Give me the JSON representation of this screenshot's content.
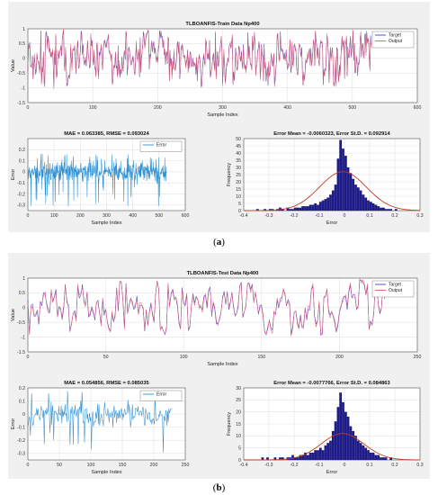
{
  "panels": [
    {
      "id": "a",
      "caption_open": "(",
      "caption_letter": "a",
      "caption_close": ")",
      "charts": [
        {
          "key": "a-top",
          "type": "line",
          "title": "TLBOANFIS-Train Data Np400",
          "xlabel": "Sample Index",
          "ylabel": "Value",
          "xlim": [
            0,
            600
          ],
          "ylim": [
            -1.5,
            1
          ],
          "xticks": [
            0,
            100,
            200,
            300,
            400,
            500,
            600
          ],
          "yticks": [
            -1.5,
            -1,
            -0.5,
            0,
            0.5,
            1
          ],
          "legend": "top-right",
          "series": [
            {
              "name": "Target",
              "color": "#4b3fc4"
            },
            {
              "name": "Output",
              "color": "#e05a6a"
            }
          ],
          "n": 530,
          "seed": 11,
          "kind": "signal"
        },
        {
          "key": "a-err",
          "type": "line",
          "title": "MAE = 0.063385, RMSE = 0.093024",
          "xlabel": "Sample Index",
          "ylabel": "Error",
          "xlim": [
            0,
            600
          ],
          "ylim": [
            -0.35,
            0.3
          ],
          "xticks": [
            0,
            100,
            200,
            300,
            400,
            500,
            600
          ],
          "yticks": [
            -0.3,
            -0.2,
            -0.1,
            0,
            0.1,
            0.2
          ],
          "legend": "top-right",
          "series": [
            {
              "name": "Error",
              "color": "#2f8fd0"
            }
          ],
          "n": 530,
          "seed": 23,
          "kind": "error"
        },
        {
          "key": "a-hist",
          "type": "bar",
          "title": "Error Mean = -0.0060323, Error St.D. = 0.092914",
          "xlabel": "Error",
          "ylabel": "Frequency",
          "xlim": [
            -0.4,
            0.3
          ],
          "ylim": [
            0,
            50
          ],
          "xticks": [
            -0.4,
            -0.3,
            -0.2,
            -0.1,
            0,
            0.1,
            0.2,
            0.3
          ],
          "yticks": [
            0,
            5,
            10,
            15,
            20,
            25,
            30,
            35,
            40,
            45,
            50
          ],
          "bin_start": -0.35,
          "bin_width": 0.01,
          "values": [
            1,
            0,
            0,
            1,
            0,
            1,
            1,
            0,
            1,
            2,
            1,
            0,
            2,
            1,
            1,
            2,
            2,
            2,
            3,
            3,
            3,
            4,
            4,
            5,
            4,
            6,
            7,
            8,
            9,
            11,
            14,
            18,
            36,
            49,
            43,
            38,
            30,
            26,
            22,
            18,
            16,
            14,
            11,
            9,
            7,
            6,
            5,
            4,
            3,
            2,
            2,
            1,
            1,
            1,
            0,
            1,
            0,
            0,
            0,
            0
          ],
          "fit_mean": -0.0060323,
          "fit_std": 0.092914,
          "fit_peak": 27,
          "bar_color": "#1e1b8c",
          "fit_color": "#c23b22"
        }
      ]
    },
    {
      "id": "b",
      "caption_open": "(",
      "caption_letter": "b",
      "caption_close": ")",
      "charts": [
        {
          "key": "b-top",
          "type": "line",
          "title": "TLBOANFIS-Test Data Np400",
          "xlabel": "Sample Index",
          "ylabel": "Value",
          "xlim": [
            0,
            250
          ],
          "ylim": [
            -1.5,
            1
          ],
          "xticks": [
            0,
            50,
            100,
            150,
            200,
            250
          ],
          "yticks": [
            -1.5,
            -1,
            -0.5,
            0,
            0.5,
            1
          ],
          "legend": "top-right",
          "series": [
            {
              "name": "Target",
              "color": "#4b3fc4"
            },
            {
              "name": "Output",
              "color": "#e05a6a"
            }
          ],
          "n": 230,
          "seed": 37,
          "kind": "signal"
        },
        {
          "key": "b-err",
          "type": "line",
          "title": "MAE = 0.054856, RMSE = 0.085035",
          "xlabel": "Sample Index",
          "ylabel": "Error",
          "xlim": [
            0,
            250
          ],
          "ylim": [
            -0.35,
            0.2
          ],
          "xticks": [
            0,
            50,
            100,
            150,
            200,
            250
          ],
          "yticks": [
            -0.3,
            -0.2,
            -0.1,
            0,
            0.1,
            0.2
          ],
          "legend": "top-right",
          "series": [
            {
              "name": "Error",
              "color": "#2f8fd0"
            }
          ],
          "n": 230,
          "seed": 53,
          "kind": "error"
        },
        {
          "key": "b-hist",
          "type": "bar",
          "title": "Error Mean = -0.0077766, Error St.D. = 0.084863",
          "xlabel": "Error",
          "ylabel": "Frequency",
          "xlim": [
            -0.4,
            0.3
          ],
          "ylim": [
            0,
            30
          ],
          "xticks": [
            -0.4,
            -0.3,
            -0.2,
            -0.1,
            0,
            0.1,
            0.2,
            0.3
          ],
          "yticks": [
            0,
            5,
            10,
            15,
            20,
            25,
            30
          ],
          "bin_start": -0.33,
          "bin_width": 0.01,
          "values": [
            1,
            0,
            1,
            0,
            0,
            1,
            0,
            1,
            1,
            0,
            1,
            1,
            2,
            1,
            1,
            2,
            2,
            3,
            2,
            3,
            3,
            4,
            4,
            5,
            4,
            6,
            7,
            8,
            12,
            16,
            22,
            28,
            24,
            20,
            18,
            14,
            12,
            10,
            8,
            7,
            6,
            5,
            4,
            3,
            3,
            2,
            2,
            1,
            1,
            1,
            0,
            1
          ],
          "fit_mean": -0.0077766,
          "fit_std": 0.084863,
          "fit_peak": 11,
          "bar_color": "#1e1b8c",
          "fit_color": "#c23b22"
        }
      ]
    }
  ]
}
